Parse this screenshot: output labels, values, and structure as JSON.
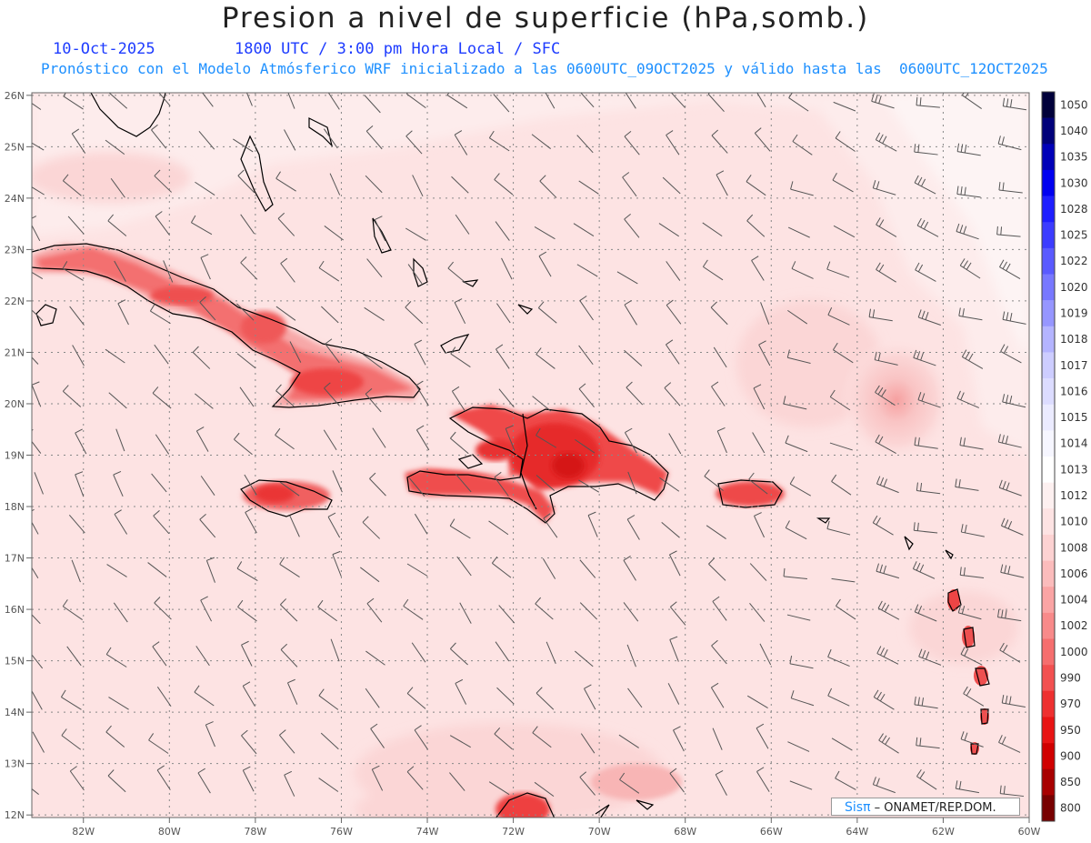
{
  "header": {
    "title": "Presion a nivel de superficie (hPa,somb.)",
    "date": "10-Oct-2025",
    "time_info": "1800 UTC / 3:00 pm Hora Local / SFC",
    "model_info": "Pronóstico con el Modelo Atmósferico WRF inicializado a las 0600UTC_09OCT2025 y válido hasta las  0600UTC_12OCT2025"
  },
  "map": {
    "lat_labels": [
      "26N",
      "25N",
      "24N",
      "23N",
      "22N",
      "21N",
      "20N",
      "19N",
      "18N",
      "17N",
      "16N",
      "15N",
      "14N",
      "13N",
      "12N"
    ],
    "lon_labels": [
      "82W",
      "80W",
      "78W",
      "76W",
      "74W",
      "72W",
      "70W",
      "68W",
      "66W",
      "64W",
      "62W",
      "60W"
    ],
    "lat_values": [
      26,
      25,
      24,
      23,
      22,
      21,
      20,
      19,
      18,
      17,
      16,
      15,
      14,
      13,
      12
    ],
    "lon_values": [
      -82,
      -80,
      -78,
      -76,
      -74,
      -72,
      -70,
      -68,
      -66,
      -64,
      -62,
      -60
    ],
    "background_color": "#fde3e3",
    "high_pressure_color": "#fdf3f3",
    "low_pressure_center": {
      "lat": 20.2,
      "lon": -63.0
    }
  },
  "colorbar": {
    "levels": [
      "1050",
      "1040",
      "1035",
      "1030",
      "1028",
      "1025",
      "1022",
      "1020",
      "1019",
      "1018",
      "1017",
      "1016",
      "1015",
      "1014",
      "1013",
      "1012",
      "1010",
      "1008",
      "1006",
      "1004",
      "1002",
      "1000",
      "990",
      "970",
      "950",
      "900",
      "850",
      "800"
    ],
    "colors": [
      "#00003a",
      "#00007a",
      "#0000b8",
      "#0000f0",
      "#1e1eff",
      "#3c3cff",
      "#5a5aff",
      "#7878ff",
      "#9696ff",
      "#b4b4ff",
      "#cdcdff",
      "#dcdcff",
      "#ebebff",
      "#f6f6ff",
      "#ffffff",
      "#fdf0f0",
      "#fde3e3",
      "#fcd2d2",
      "#fbbcbc",
      "#faa4a4",
      "#f88a8a",
      "#f56e6e",
      "#f25050",
      "#ee3030",
      "#e81414",
      "#d00000",
      "#a80000",
      "#780000"
    ]
  },
  "credit": {
    "brand": "Sisπ",
    "text": "– ONAMET/REP.DOM."
  }
}
